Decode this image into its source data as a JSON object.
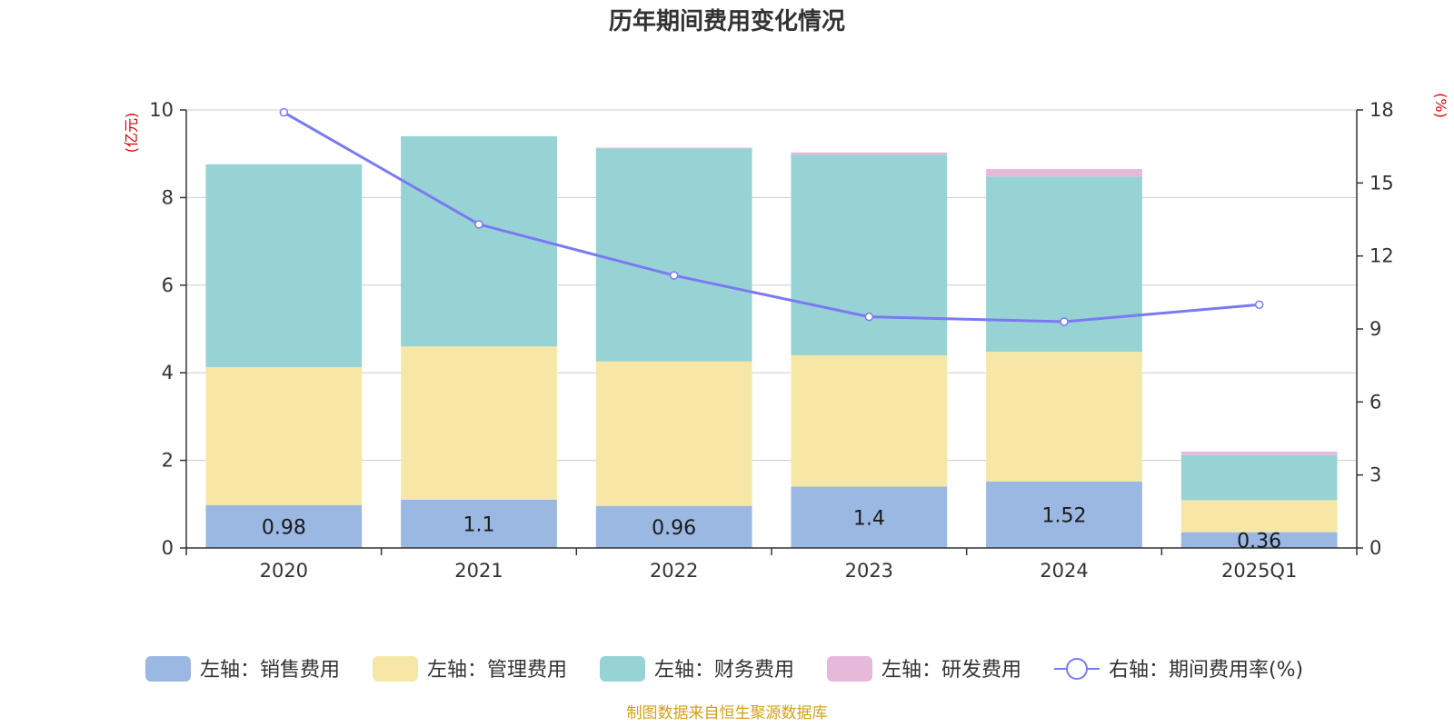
{
  "chart_data": {
    "type": "bar",
    "title": "历年期间费用变化情况",
    "left_axis_unit": "(亿元)",
    "right_axis_unit": "(%)",
    "categories": [
      "2020",
      "2021",
      "2022",
      "2023",
      "2024",
      "2025Q1"
    ],
    "left_axis": {
      "min": 0,
      "max": 10,
      "ticks": [
        "0",
        "2",
        "4",
        "6",
        "8",
        "10"
      ]
    },
    "right_axis": {
      "min": 0,
      "max": 18,
      "ticks": [
        "0",
        "3",
        "6",
        "9",
        "12",
        "15",
        "18"
      ]
    },
    "stacked": true,
    "grid": true,
    "legend_position": "bottom",
    "series": [
      {
        "name": "左轴：销售费用",
        "axis": "left",
        "type": "bar",
        "color": "#9bb8e2",
        "values": [
          0.98,
          1.1,
          0.96,
          1.4,
          1.52,
          0.36
        ],
        "labels": [
          "0.98",
          "1.1",
          "0.96",
          "1.4",
          "1.52",
          "0.36"
        ]
      },
      {
        "name": "左轴：管理费用",
        "axis": "left",
        "type": "bar",
        "color": "#f7e7a7",
        "values": [
          3.15,
          3.5,
          3.3,
          3.0,
          2.96,
          0.73
        ]
      },
      {
        "name": "左轴：财务费用",
        "axis": "left",
        "type": "bar",
        "color": "#97d3d5",
        "values": [
          4.63,
          4.8,
          4.86,
          4.58,
          4.0,
          1.03
        ]
      },
      {
        "name": "左轴：研发费用",
        "axis": "left",
        "type": "bar",
        "color": "#e6b8da",
        "values": [
          0.0,
          0.0,
          0.02,
          0.05,
          0.17,
          0.08
        ]
      },
      {
        "name": "右轴：期间费用率(%)",
        "axis": "right",
        "type": "line",
        "color": "#7b79f2",
        "values": [
          17.9,
          13.3,
          11.2,
          9.5,
          9.3,
          10.0
        ]
      }
    ]
  },
  "source_note": "制图数据来自恒生聚源数据库"
}
